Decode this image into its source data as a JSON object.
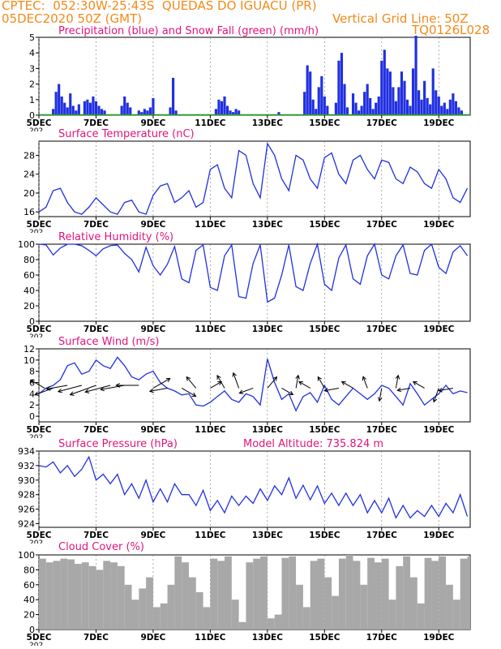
{
  "header": {
    "line1": "CPTEC:  052:30W-25:43S  QUEDAS DO IGUACU (PR)",
    "line2": "05DEC2020 50Z (GMT)",
    "grid_note": "Vertical Grid Line: 50Z",
    "code": "TQ0126L028"
  },
  "colors": {
    "header": "#f28a1a",
    "title": "#e0147c",
    "series": "#2030e0",
    "snow": "#20a020",
    "cloud": "#a8a8a8",
    "axis": "#000000"
  },
  "x_axis": {
    "tick_labels": [
      "5DEC",
      "7DEC",
      "9DEC",
      "11DEC",
      "13DEC",
      "15DEC",
      "17DEC",
      "19DEC"
    ],
    "tick_days": [
      0,
      2,
      4,
      6,
      8,
      10,
      12,
      14
    ],
    "range_days": [
      0,
      15.1
    ],
    "stub_label": "202"
  },
  "chart_data": [
    {
      "type": "bar",
      "title": "Precipitation (blue) and Snow Fall (green) (mm/h)",
      "ylim": [
        0,
        5
      ],
      "yticks": [
        0,
        1,
        2,
        3,
        4,
        5
      ],
      "snow_value": 0,
      "series": [
        {
          "name": "Precipitation",
          "x": [
            0.5,
            0.6,
            0.7,
            0.8,
            0.9,
            1.0,
            1.1,
            1.2,
            1.3,
            1.4,
            1.6,
            1.7,
            1.8,
            1.9,
            2.0,
            2.1,
            2.2,
            2.3,
            2.9,
            3.0,
            3.1,
            3.2,
            3.5,
            3.6,
            3.7,
            3.8,
            3.9,
            4.0,
            4.6,
            4.7,
            4.8,
            6.2,
            6.3,
            6.4,
            6.5,
            6.6,
            6.7,
            6.8,
            6.9,
            7.0,
            8.4,
            9.3,
            9.4,
            9.5,
            9.6,
            9.7,
            9.8,
            9.9,
            10.0,
            10.1,
            10.4,
            10.5,
            10.6,
            10.7,
            10.8,
            11.0,
            11.1,
            11.2,
            11.3,
            11.4,
            11.5,
            11.6,
            11.7,
            11.8,
            11.9,
            12.0,
            12.1,
            12.2,
            12.3,
            12.4,
            12.5,
            12.6,
            12.7,
            12.8,
            12.9,
            13.0,
            13.1,
            13.2,
            13.3,
            13.4,
            13.5,
            13.6,
            13.7,
            13.8,
            13.9,
            14.0,
            14.1,
            14.2,
            14.3,
            14.4,
            14.5,
            14.6,
            14.7,
            14.8
          ],
          "values": [
            0.4,
            1.5,
            2.0,
            1.2,
            0.8,
            0.5,
            1.4,
            0.6,
            0.3,
            0.7,
            0.9,
            1.0,
            0.8,
            1.2,
            0.9,
            0.6,
            0.4,
            0.3,
            0.6,
            1.2,
            0.8,
            0.5,
            0.3,
            0.2,
            0.4,
            0.3,
            0.5,
            1.1,
            0.5,
            2.4,
            0.3,
            0.4,
            1.0,
            0.9,
            1.2,
            0.6,
            0.3,
            0.2,
            0.4,
            0.3,
            0.2,
            1.5,
            3.2,
            2.8,
            1.0,
            0.4,
            1.8,
            2.5,
            1.2,
            0.6,
            0.8,
            3.5,
            4.0,
            2.0,
            0.5,
            1.4,
            0.8,
            0.3,
            0.6,
            1.5,
            2.0,
            1.1,
            0.4,
            0.8,
            1.2,
            3.5,
            4.2,
            3.0,
            2.8,
            1.8,
            0.9,
            1.8,
            2.8,
            2.2,
            1.0,
            0.6,
            3.0,
            5.1,
            1.6,
            1.0,
            2.2,
            1.1,
            0.7,
            3.0,
            1.6,
            1.2,
            0.6,
            0.8,
            0.4,
            1.0,
            1.4,
            0.9,
            0.5,
            0.3
          ]
        },
        {
          "name": "Snow Fall",
          "x": [
            0,
            15
          ],
          "values": [
            0,
            0
          ]
        }
      ]
    },
    {
      "type": "line",
      "title": "Surface Temperature (nC)",
      "ylim": [
        15,
        31
      ],
      "yticks": [
        16,
        20,
        24,
        28
      ],
      "x": [
        0,
        0.25,
        0.5,
        0.75,
        1,
        1.25,
        1.5,
        1.75,
        2,
        2.25,
        2.5,
        2.75,
        3,
        3.25,
        3.5,
        3.75,
        4,
        4.25,
        4.5,
        4.75,
        5,
        5.25,
        5.5,
        5.75,
        6,
        6.25,
        6.5,
        6.75,
        7,
        7.25,
        7.5,
        7.75,
        8,
        8.25,
        8.5,
        8.75,
        9,
        9.25,
        9.5,
        9.75,
        10,
        10.25,
        10.5,
        10.75,
        11,
        11.25,
        11.5,
        11.75,
        12,
        12.25,
        12.5,
        12.75,
        13,
        13.25,
        13.5,
        13.75,
        14,
        14.25,
        14.5,
        14.75,
        15
      ],
      "values": [
        16,
        17,
        20.5,
        21,
        18,
        16,
        15.5,
        17,
        19,
        17.5,
        16,
        15.5,
        18,
        18.5,
        16,
        15.5,
        19.5,
        21.5,
        22,
        18,
        19,
        20.5,
        17,
        18,
        25,
        26,
        21,
        19,
        29,
        28,
        22,
        19,
        30.5,
        28,
        23,
        20.5,
        28,
        27,
        23,
        21,
        27.5,
        28.5,
        24,
        22,
        27,
        28,
        25,
        23,
        27,
        26.5,
        23,
        22,
        25.5,
        24.5,
        22,
        21,
        25,
        23,
        19,
        18,
        21
      ]
    },
    {
      "type": "line",
      "title": "Relative Humidity (%)",
      "ylim": [
        0,
        100
      ],
      "yticks": [
        0,
        20,
        40,
        60,
        80,
        100
      ],
      "x": [
        0,
        0.25,
        0.5,
        0.75,
        1,
        1.25,
        1.5,
        1.75,
        2,
        2.25,
        2.5,
        2.75,
        3,
        3.25,
        3.5,
        3.75,
        4,
        4.25,
        4.5,
        4.75,
        5,
        5.25,
        5.5,
        5.75,
        6,
        6.25,
        6.5,
        6.75,
        7,
        7.25,
        7.5,
        7.75,
        8,
        8.25,
        8.5,
        8.75,
        9,
        9.25,
        9.5,
        9.75,
        10,
        10.25,
        10.5,
        10.75,
        11,
        11.25,
        11.5,
        11.75,
        12,
        12.25,
        12.5,
        12.75,
        13,
        13.25,
        13.5,
        13.75,
        14,
        14.25,
        14.5,
        14.75,
        15
      ],
      "values": [
        100,
        99,
        86,
        95,
        100,
        100,
        98,
        92,
        85,
        94,
        98,
        99,
        88,
        80,
        64,
        96,
        72,
        60,
        74,
        97,
        55,
        50,
        92,
        99,
        44,
        40,
        85,
        99,
        32,
        30,
        75,
        99,
        25,
        30,
        60,
        99,
        45,
        40,
        75,
        100,
        48,
        40,
        82,
        99,
        55,
        48,
        85,
        100,
        60,
        55,
        85,
        99,
        62,
        60,
        92,
        100,
        70,
        62,
        90,
        98,
        85
      ]
    },
    {
      "type": "line",
      "title": "Surface Wind (m/s)",
      "ylim": [
        -1,
        12
      ],
      "yticks": [
        0,
        2,
        4,
        6,
        8,
        10,
        12
      ],
      "x": [
        0,
        0.25,
        0.5,
        0.75,
        1,
        1.25,
        1.5,
        1.75,
        2,
        2.25,
        2.5,
        2.75,
        3,
        3.25,
        3.5,
        3.75,
        4,
        4.25,
        4.5,
        4.75,
        5,
        5.25,
        5.5,
        5.75,
        6,
        6.25,
        6.5,
        6.75,
        7,
        7.25,
        7.5,
        7.75,
        8,
        8.25,
        8.5,
        8.75,
        9,
        9.25,
        9.5,
        9.75,
        10,
        10.25,
        10.5,
        10.75,
        11,
        11.25,
        11.5,
        11.75,
        12,
        12.25,
        12.5,
        12.75,
        13,
        13.25,
        13.5,
        13.75,
        14,
        14.25,
        14.5,
        14.75,
        15
      ],
      "values": [
        4,
        5,
        5.5,
        6.5,
        9,
        9.5,
        7.5,
        8,
        10,
        9,
        8.5,
        10.5,
        9,
        7,
        6.5,
        7.5,
        8,
        6,
        5,
        4.5,
        3.8,
        4,
        2,
        1.8,
        2.5,
        3.5,
        4.5,
        3,
        2.5,
        4,
        3.5,
        2,
        10.2,
        6,
        3,
        4,
        1,
        3.5,
        4.2,
        2.5,
        5.5,
        3,
        2,
        3.5,
        5,
        4,
        3,
        4,
        5.5,
        5,
        3.5,
        2,
        5.8,
        4,
        2,
        3,
        4,
        5.5,
        4,
        4.5,
        4.2
      ],
      "arrows": {
        "x": [
          0.2,
          0.5,
          1.0,
          1.5,
          2.0,
          2.5,
          3.0,
          3.5,
          4.0,
          4.5,
          5.0,
          5.5,
          6.0,
          6.5,
          7.0,
          7.5,
          8.0,
          8.5,
          9.0,
          9.5,
          10.0,
          10.5,
          11.0,
          11.5,
          12.0,
          12.5,
          13.0,
          13.5,
          14.0,
          14.5
        ],
        "speed": [
          4,
          5,
          5.5,
          6.5,
          7.5,
          7,
          6.5,
          6,
          5,
          4.5,
          4,
          3.5,
          3,
          3.5,
          4,
          3.5,
          3.5,
          3,
          3,
          3,
          3,
          3.5,
          3,
          2.8,
          3,
          3,
          3,
          3,
          3.5,
          3.5
        ],
        "direction_deg": [
          300,
          250,
          260,
          255,
          250,
          255,
          260,
          270,
          60,
          260,
          120,
          320,
          60,
          330,
          340,
          250,
          40,
          120,
          10,
          300,
          330,
          260,
          300,
          340,
          190,
          10,
          260,
          300,
          200,
          260
        ]
      }
    },
    {
      "type": "line",
      "title": "Surface Pressure (hPa)",
      "annotation": "Model Altitude: 735.824 m",
      "ylim": [
        923.5,
        934
      ],
      "yticks": [
        924,
        926,
        928,
        930,
        932,
        934
      ],
      "x": [
        0,
        0.25,
        0.5,
        0.75,
        1,
        1.25,
        1.5,
        1.75,
        2,
        2.25,
        2.5,
        2.75,
        3,
        3.25,
        3.5,
        3.75,
        4,
        4.25,
        4.5,
        4.75,
        5,
        5.25,
        5.5,
        5.75,
        6,
        6.25,
        6.5,
        6.75,
        7,
        7.25,
        7.5,
        7.75,
        8,
        8.25,
        8.5,
        8.75,
        9,
        9.25,
        9.5,
        9.75,
        10,
        10.25,
        10.5,
        10.75,
        11,
        11.25,
        11.5,
        11.75,
        12,
        12.25,
        12.5,
        12.75,
        13,
        13.25,
        13.5,
        13.75,
        14,
        14.25,
        14.5,
        14.75,
        15
      ],
      "values": [
        932,
        931.8,
        932.5,
        931,
        932,
        930.5,
        931.5,
        933.2,
        930,
        930.8,
        929.5,
        930.8,
        928,
        929.5,
        927.5,
        930,
        927,
        928.8,
        927,
        929.5,
        928,
        928,
        926.5,
        928.6,
        925.8,
        927.2,
        925.5,
        927.8,
        926.5,
        927.8,
        926.8,
        928.8,
        927.2,
        929.2,
        928,
        930.3,
        927.5,
        929.3,
        927.3,
        929.2,
        926.8,
        928.2,
        926.5,
        928.2,
        926.5,
        928,
        925.5,
        927.2,
        925.5,
        927.5,
        924.8,
        926.5,
        924.8,
        925.8,
        925,
        926.5,
        925,
        926.8,
        925.5,
        928,
        925
      ]
    },
    {
      "type": "bar",
      "title": "Cloud Cover (%)",
      "ylim": [
        0,
        100
      ],
      "yticks": [
        0,
        20,
        40,
        60,
        80,
        100
      ],
      "x": [
        0.0,
        0.25,
        0.5,
        0.75,
        1.0,
        1.25,
        1.5,
        1.75,
        2.0,
        2.25,
        2.5,
        2.75,
        3.0,
        3.25,
        3.5,
        3.75,
        4.0,
        4.25,
        4.5,
        4.75,
        5.0,
        5.25,
        5.5,
        5.75,
        6.0,
        6.25,
        6.5,
        6.75,
        7.0,
        7.25,
        7.5,
        7.75,
        8.0,
        8.25,
        8.5,
        8.75,
        9.0,
        9.25,
        9.5,
        9.75,
        10.0,
        10.25,
        10.5,
        10.75,
        11.0,
        11.25,
        11.5,
        11.75,
        12.0,
        12.25,
        12.5,
        12.75,
        13.0,
        13.25,
        13.5,
        13.75,
        14.0,
        14.25,
        14.5,
        14.75,
        15.0
      ],
      "values": [
        95,
        90,
        92,
        95,
        94,
        88,
        90,
        85,
        80,
        92,
        90,
        85,
        60,
        40,
        55,
        70,
        30,
        35,
        60,
        98,
        90,
        70,
        50,
        30,
        95,
        92,
        98,
        40,
        10,
        90,
        95,
        98,
        15,
        20,
        96,
        98,
        60,
        30,
        92,
        95,
        70,
        45,
        95,
        100,
        92,
        60,
        96,
        90,
        95,
        40,
        85,
        98,
        70,
        35,
        96,
        92,
        98,
        60,
        40,
        95,
        98
      ]
    }
  ]
}
